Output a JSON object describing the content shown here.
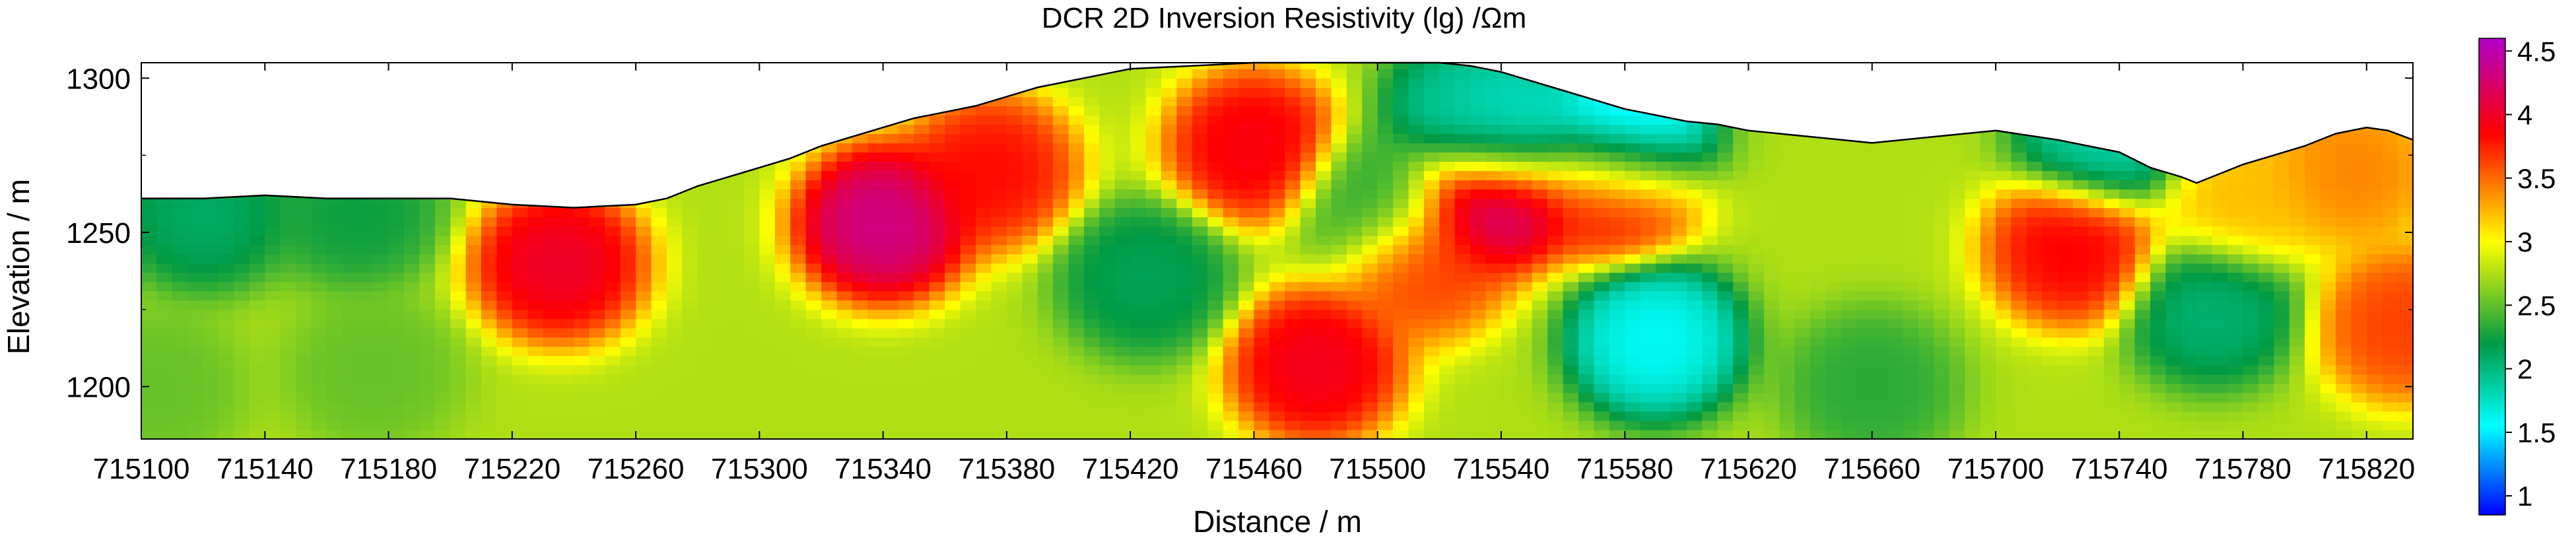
{
  "chart_data": {
    "type": "heatmap",
    "title": "DCR 2D Inversion Resistivity (lg) /Ωm",
    "xlabel": "Distance / m",
    "ylabel": "Elevation / m",
    "xlim": [
      715100,
      715835
    ],
    "ylim": [
      1183,
      1305
    ],
    "x_ticks": [
      "715100",
      "715140",
      "715180",
      "715220",
      "715260",
      "715300",
      "715340",
      "715380",
      "715420",
      "715460",
      "715500",
      "715540",
      "715580",
      "715620",
      "715660",
      "715700",
      "715740",
      "715780",
      "715820"
    ],
    "y_ticks": [
      "1200",
      "1250",
      "1300"
    ],
    "colorbar": {
      "min": 0.85,
      "max": 4.6,
      "ticks": [
        "1",
        "1.5",
        "2",
        "2.5",
        "3",
        "3.5",
        "4",
        "4.5"
      ],
      "colors": [
        "#0000ff",
        "#00ffff",
        "#009a44",
        "#ffff00",
        "#ff0000",
        "#b000c8"
      ]
    },
    "surface_profile": {
      "x": [
        715100,
        715120,
        715140,
        715160,
        715180,
        715200,
        715220,
        715240,
        715260,
        715270,
        715280,
        715290,
        715300,
        715310,
        715320,
        715330,
        715340,
        715350,
        715360,
        715370,
        715380,
        715390,
        715400,
        715410,
        715420,
        715440,
        715460,
        715480,
        715500,
        715520,
        715530,
        715540,
        715550,
        715560,
        715570,
        715580,
        715590,
        715600,
        715610,
        715620,
        715640,
        715660,
        715680,
        715700,
        715720,
        715740,
        715750,
        715760,
        715765,
        715770,
        715780,
        715790,
        715800,
        715810,
        715820,
        715827,
        715835
      ],
      "y": [
        1261,
        1261,
        1262,
        1261,
        1261,
        1261,
        1259,
        1258,
        1259,
        1261,
        1265,
        1268,
        1271,
        1274,
        1278,
        1281,
        1284,
        1287,
        1289,
        1291,
        1294,
        1297,
        1299,
        1301,
        1303,
        1304,
        1305,
        1305,
        1305,
        1305,
        1304,
        1302,
        1299,
        1296,
        1293,
        1290,
        1288,
        1286,
        1285,
        1283,
        1281,
        1279,
        1281,
        1283,
        1280,
        1276,
        1271,
        1268,
        1266,
        1268,
        1272,
        1275,
        1278,
        1282,
        1284,
        1283,
        1280
      ]
    },
    "anomalies": [
      {
        "x": 715235,
        "y": 1240,
        "value": 4.1
      },
      {
        "x": 715340,
        "y": 1253,
        "value": 4.45
      },
      {
        "x": 715375,
        "y": 1270,
        "value": 3.9
      },
      {
        "x": 715460,
        "y": 1278,
        "value": 4.0
      },
      {
        "x": 715480,
        "y": 1207,
        "value": 4.05
      },
      {
        "x": 715515,
        "y": 1240,
        "value": 3.7
      },
      {
        "x": 715536,
        "y": 1262,
        "value": 4.5
      },
      {
        "x": 715577,
        "y": 1265,
        "value": 4.0
      },
      {
        "x": 715725,
        "y": 1245,
        "value": 3.95
      },
      {
        "x": 715832,
        "y": 1220,
        "value": 3.7
      },
      {
        "x": 715540,
        "y": 1283,
        "value": 1.55
      },
      {
        "x": 715580,
        "y": 1280,
        "value": 1.1
      },
      {
        "x": 715590,
        "y": 1215,
        "value": 1.5
      },
      {
        "x": 715530,
        "y": 1290,
        "value": 1.9
      },
      {
        "x": 715425,
        "y": 1235,
        "value": 2.1
      },
      {
        "x": 715500,
        "y": 1260,
        "value": 2.3
      },
      {
        "x": 715735,
        "y": 1280,
        "value": 1.8
      },
      {
        "x": 715770,
        "y": 1225,
        "value": 2.0
      },
      {
        "x": 715660,
        "y": 1200,
        "value": 2.3
      },
      {
        "x": 715175,
        "y": 1205,
        "value": 2.5
      },
      {
        "x": 715105,
        "y": 1200,
        "value": 2.5
      },
      {
        "x": 715120,
        "y": 1256,
        "value": 2.05
      },
      {
        "x": 715170,
        "y": 1257,
        "value": 2.2
      },
      {
        "x": 715780,
        "y": 1260,
        "value": 3.25
      },
      {
        "x": 715815,
        "y": 1270,
        "value": 3.45
      }
    ]
  }
}
